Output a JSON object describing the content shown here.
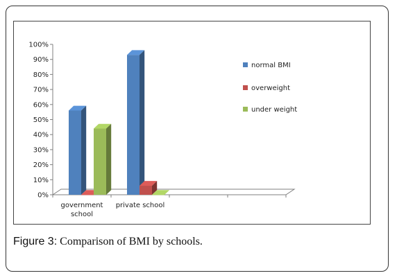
{
  "caption": {
    "label": "Figure 3:",
    "text": "Comparison of BMI by schools."
  },
  "chart_data": {
    "type": "bar",
    "categories": [
      [
        "government",
        "school"
      ],
      [
        "private school"
      ]
    ],
    "series": [
      {
        "name": "normal BMI",
        "values": [
          56,
          93
        ],
        "color": "#4f81bd"
      },
      {
        "name": "overweight",
        "values": [
          0,
          6
        ],
        "color": "#c0504d"
      },
      {
        "name": "under weight",
        "values": [
          44,
          0
        ],
        "color": "#9bbb59"
      }
    ],
    "ylim": [
      0,
      100
    ],
    "y_ticks": [
      "0%",
      "10%",
      "20%",
      "30%",
      "40%",
      "50%",
      "60%",
      "70%",
      "80%",
      "90%",
      "100%"
    ],
    "legend_position": "right",
    "grid": false,
    "three_d": true
  }
}
